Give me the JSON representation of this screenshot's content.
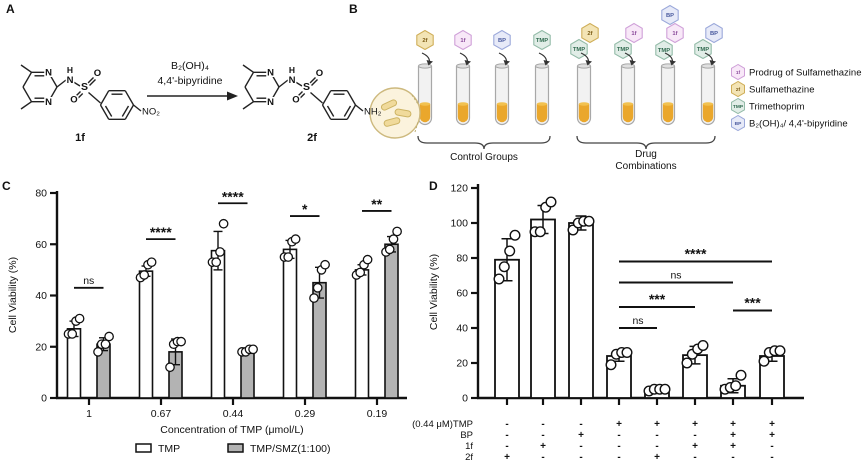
{
  "panels": {
    "a": "A",
    "b": "B",
    "c": "C",
    "d": "D"
  },
  "panelA": {
    "reactant_label": "1f",
    "product_label": "2f",
    "reagent_line1": "B₂(OH)₄",
    "reagent_line2": "4,4'-bipyridine",
    "reactant_substituent": "NO₂",
    "product_substituent": "NH₂",
    "atoms": {
      "n": "N",
      "h": "H",
      "s": "S",
      "o": "O"
    }
  },
  "panelB": {
    "tubes": [
      {
        "chips": [
          "2f"
        ]
      },
      {
        "chips": [
          "1f"
        ]
      },
      {
        "chips": [
          "BP"
        ]
      },
      {
        "chips": [
          "TMP"
        ]
      },
      {
        "chips": [
          "2f",
          "TMP"
        ]
      },
      {
        "chips": [
          "1f",
          "TMP"
        ]
      },
      {
        "chips": [
          "BP",
          "1f",
          "TMP"
        ]
      },
      {
        "chips": [
          "BP",
          "TMP"
        ]
      }
    ],
    "chip_colors": {
      "1f": {
        "fill": "#f8e8f8",
        "stroke": "#cfa0d8",
        "text": "#8a4a9a"
      },
      "2f": {
        "fill": "#f3e4b5",
        "stroke": "#cfae58",
        "text": "#7a5a14"
      },
      "TMP": {
        "fill": "#e1ede7",
        "stroke": "#93bba8",
        "text": "#2f6a4f"
      },
      "BP": {
        "fill": "#e7eaf8",
        "stroke": "#9ba8da",
        "text": "#4a5a9e"
      }
    },
    "group_labels": {
      "control": "Control Groups",
      "combo_line1": "Drug",
      "combo_line2": "Combinations"
    },
    "legend": [
      {
        "chip": "1f",
        "label": "Prodrug of Sulfamethazine"
      },
      {
        "chip": "2f",
        "label": "Sulfamethazine"
      },
      {
        "chip": "TMP",
        "label": "Trimethoprim"
      },
      {
        "chip": "BP",
        "label": "B₂(OH)₄/ 4,4'-bipyridine"
      }
    ],
    "liquid_color": "#eaa72c"
  },
  "chart_data": [
    {
      "panel": "C",
      "type": "bar",
      "ylabel": "Cell Viability (%)",
      "xlabel": "Concentration of TMP (μmol/L)",
      "ylim": [
        0,
        80
      ],
      "yticks": [
        0,
        20,
        40,
        60,
        80
      ],
      "categories": [
        "1",
        "0.67",
        "0.44",
        "0.29",
        "0.19"
      ],
      "series": [
        {
          "name": "TMP",
          "fill": "#ffffff",
          "values": [
            27,
            49.5,
            57.5,
            58,
            50
          ],
          "errors": [
            3,
            2,
            7.5,
            3.5,
            2
          ],
          "points": [
            [
              25,
              25,
              30,
              31
            ],
            [
              47,
              48,
              52,
              53
            ],
            [
              53,
              53,
              57,
              68
            ],
            [
              55,
              55,
              61,
              62
            ],
            [
              48,
              49,
              52,
              54
            ]
          ]
        },
        {
          "name": "TMP/SMZ(1:100)",
          "fill": "#b3b3b3",
          "values": [
            21,
            18,
            18.5,
            45,
            60
          ],
          "errors": [
            2.5,
            5,
            1,
            6,
            3
          ],
          "points": [
            [
              18,
              21,
              21,
              24
            ],
            [
              12,
              21,
              22,
              22
            ],
            [
              18,
              18,
              19,
              19
            ],
            [
              39,
              43,
              50,
              52
            ],
            [
              57,
              58,
              62,
              65
            ]
          ]
        }
      ],
      "significance": [
        {
          "group": 0,
          "label": "ns",
          "height": 43
        },
        {
          "group": 1,
          "label": "****",
          "height": 62
        },
        {
          "group": 2,
          "label": "****",
          "height": 76
        },
        {
          "group": 3,
          "label": "*",
          "height": 71
        },
        {
          "group": 4,
          "label": "**",
          "height": 73
        }
      ]
    },
    {
      "panel": "D",
      "type": "bar",
      "ylabel": "Cell Viability (%)",
      "ylim": [
        0,
        120
      ],
      "yticks": [
        0,
        20,
        40,
        60,
        80,
        100,
        120
      ],
      "bar_fill": "#ffffff",
      "values": [
        79,
        102,
        100,
        24,
        5,
        24.5,
        7,
        24
      ],
      "errors": [
        12,
        8,
        4,
        3,
        1,
        5,
        4,
        3
      ],
      "points": [
        [
          68,
          75,
          84,
          93
        ],
        [
          95,
          95,
          109,
          112
        ],
        [
          96,
          100,
          101,
          101
        ],
        [
          19,
          25,
          26,
          26
        ],
        [
          4,
          5,
          5,
          5
        ],
        [
          20,
          25,
          28,
          30
        ],
        [
          5,
          6,
          7,
          13
        ],
        [
          21,
          26,
          27,
          27
        ]
      ],
      "treatment_rows": [
        {
          "label": "(0.44 μM)TMP",
          "signs": [
            "-",
            "-",
            "-",
            "+",
            "+",
            "+",
            "+",
            "+"
          ]
        },
        {
          "label": "BP",
          "signs": [
            "-",
            "-",
            "+",
            "-",
            "-",
            "-",
            "+",
            "+"
          ]
        },
        {
          "label": "1f",
          "signs": [
            "-",
            "+",
            "-",
            "-",
            "-",
            "+",
            "+",
            "-"
          ]
        },
        {
          "label": "2f",
          "signs": [
            "+",
            "-",
            "-",
            "-",
            "+",
            "-",
            "-",
            "-"
          ]
        }
      ],
      "significance": [
        {
          "from": 3,
          "to": 4,
          "label": "ns",
          "height": 40
        },
        {
          "from": 3,
          "to": 5,
          "label": "***",
          "height": 52
        },
        {
          "from": 3,
          "to": 6,
          "label": "ns",
          "height": 66
        },
        {
          "from": 3,
          "to": 7,
          "label": "****",
          "height": 78
        },
        {
          "from": 6,
          "to": 7,
          "label": "***",
          "height": 50
        }
      ]
    }
  ]
}
